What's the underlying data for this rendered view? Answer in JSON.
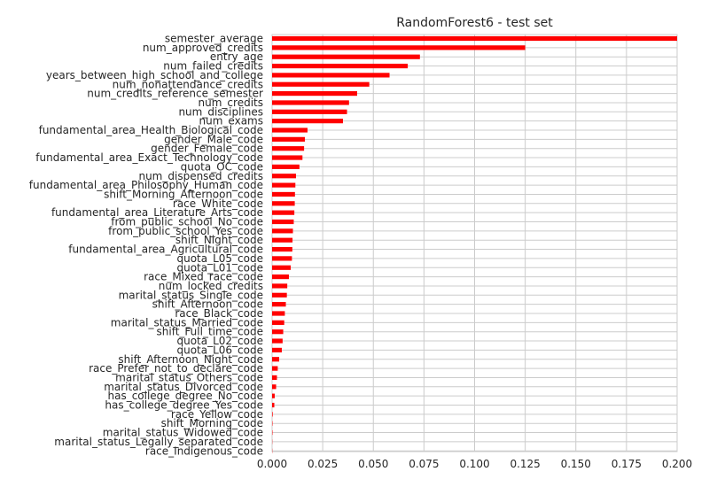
{
  "chart_data": {
    "type": "bar",
    "orientation": "horizontal",
    "title": "RandomForest6 - test set",
    "xlabel": "",
    "ylabel": "",
    "xlim": [
      0,
      0.2
    ],
    "xticks": [
      "0.000",
      "0.025",
      "0.050",
      "0.075",
      "0.100",
      "0.125",
      "0.150",
      "0.175",
      "0.200"
    ],
    "grid": true,
    "bar_color": "#ff0000",
    "categories": [
      "semester_average",
      "num_approved_credits",
      "entry_age",
      "num_failed_credits",
      "years_between_high_school_and_college",
      "num_nonattendance_credits",
      "num_credits_reference_semester",
      "num_credits",
      "num_disciplines",
      "num_exams",
      "fundamental_area_Health_Biological_code",
      "gender_Male_code",
      "gender_Female_code",
      "fundamental_area_Exact_Technology_code",
      "quota_OC_code",
      "num_dispensed_credits",
      "fundamental_area_Philosophy_Human_code",
      "shift_Morning_Afternoon_code",
      "race_White_code",
      "fundamental_area_Literature_Arts_code",
      "from_public_school_No_code",
      "from_public_school_Yes_code",
      "shift_Night_code",
      "fundamental_area_Agricultural_code",
      "quota_L05_code",
      "quota_L01_code",
      "race_Mixed_race_code",
      "num_locked_credits",
      "marital_status_Single_code",
      "shift_Afternoon_code",
      "race_Black_code",
      "marital_status_Married_code",
      "shift_Full_time_code",
      "quota_L02_code",
      "quota_L06_code",
      "shift_Afternoon_Night_code",
      "race_Prefer_not_to_declare_code",
      "marital_status_Others_code",
      "marital_status_Divorced_code",
      "has_college_degree_No_code",
      "has_college_degree_Yes_code",
      "race_Yellow_code",
      "shift_Morning_code",
      "marital_status_Widowed_code",
      "marital_status_Legally_separated_code",
      "race_Indigenous_code"
    ],
    "values": [
      0.2,
      0.125,
      0.073,
      0.067,
      0.058,
      0.048,
      0.042,
      0.038,
      0.037,
      0.035,
      0.0175,
      0.0162,
      0.0158,
      0.015,
      0.0135,
      0.0118,
      0.0115,
      0.0113,
      0.0112,
      0.011,
      0.0107,
      0.0103,
      0.0101,
      0.01,
      0.0098,
      0.0092,
      0.0083,
      0.0075,
      0.0073,
      0.0068,
      0.0063,
      0.006,
      0.0055,
      0.0052,
      0.0048,
      0.0035,
      0.0028,
      0.0024,
      0.002,
      0.0013,
      0.0011,
      0.0003,
      0.0002,
      0.0002,
      0.0001,
      0.0001
    ]
  }
}
